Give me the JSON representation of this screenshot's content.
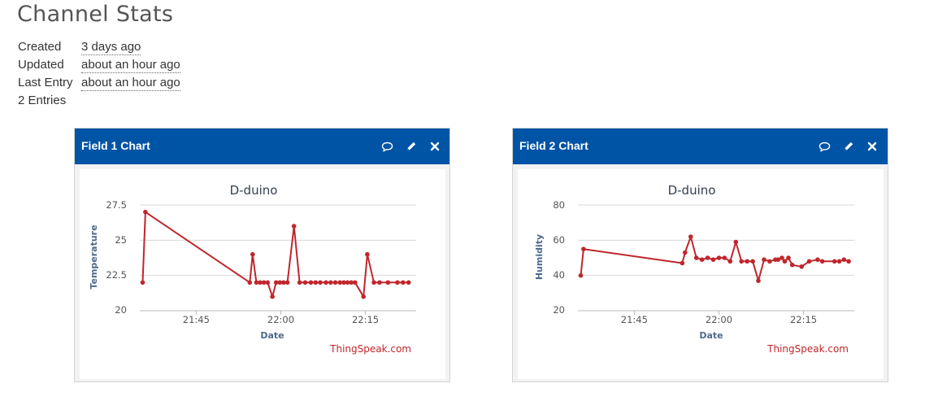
{
  "page": {
    "title": "Channel Stats"
  },
  "stats": [
    {
      "label": "Created",
      "value": "3 days ago"
    },
    {
      "label": "Updated",
      "value": "about an hour ago"
    },
    {
      "label": "Last Entry",
      "value": "about an hour ago"
    },
    {
      "label": "2 Entries",
      "value": ""
    }
  ],
  "colors": {
    "header": "#0054a6",
    "line": "#c0262c",
    "grid": "#d8d8d8"
  },
  "icons": [
    "comment-icon",
    "pencil-icon",
    "close-icon"
  ],
  "widgets": [
    {
      "header": "Field 1 Chart",
      "credit": "ThingSpeak.com",
      "chart": {
        "title": "D-duino",
        "xlabel": "Date",
        "ylabel": "Temperature",
        "yticks": [
          "27.5",
          "25",
          "22.5",
          "20"
        ],
        "xticks": [
          "21:45",
          "22:00",
          "22:15"
        ]
      }
    },
    {
      "header": "Field 2 Chart",
      "credit": "ThingSpeak.com",
      "chart": {
        "title": "D-duino",
        "xlabel": "Date",
        "ylabel": "Humidity",
        "yticks": [
          "80",
          "60",
          "40",
          "20"
        ],
        "xticks": [
          "21:45",
          "22:00",
          "22:15"
        ]
      }
    }
  ],
  "chart_data": [
    {
      "type": "line",
      "title": "D-duino",
      "xlabel": "Date",
      "ylabel": "Temperature",
      "ylim": [
        20,
        27.5
      ],
      "yticks": [
        20,
        22.5,
        25,
        27.5
      ],
      "xlim": [
        "21:35",
        "22:24"
      ],
      "xticks": [
        "21:45",
        "22:00",
        "22:15"
      ],
      "grid": true,
      "series": [
        {
          "x": [
            "21:35:30",
            "21:36:00",
            "21:54:30",
            "21:55:00",
            "21:55:40",
            "21:56:20",
            "21:57:00",
            "21:57:40",
            "21:58:30",
            "21:59:10",
            "21:59:50",
            "22:00:30",
            "22:01:10",
            "22:02:20",
            "22:03:20",
            "22:04:20",
            "22:05:20",
            "22:06:10",
            "22:07:00",
            "22:08:00",
            "22:08:50",
            "22:09:40",
            "22:10:30",
            "22:11:10",
            "22:11:50",
            "22:12:30",
            "22:13:10",
            "22:14:40",
            "22:15:20",
            "22:16:30",
            "22:17:30",
            "22:19:00",
            "22:20:40",
            "22:21:40",
            "22:22:40"
          ],
          "y": [
            22,
            27,
            22,
            24,
            22,
            22,
            22,
            22,
            21,
            22,
            22,
            22,
            22,
            26,
            22,
            22,
            22,
            22,
            22,
            22,
            22,
            22,
            22,
            22,
            22,
            22,
            22,
            21,
            24,
            22,
            22,
            22,
            22,
            22,
            22
          ]
        }
      ]
    },
    {
      "type": "line",
      "title": "D-duino",
      "xlabel": "Date",
      "ylabel": "Humidity",
      "ylim": [
        20,
        80
      ],
      "yticks": [
        20,
        40,
        60,
        80
      ],
      "xlim": [
        "21:35",
        "22:24"
      ],
      "xticks": [
        "21:45",
        "22:00",
        "22:15"
      ],
      "grid": true,
      "series": [
        {
          "x": [
            "21:35:30",
            "21:36:00",
            "21:53:30",
            "21:54:00",
            "21:55:00",
            "21:56:00",
            "21:57:00",
            "21:58:00",
            "21:59:00",
            "22:00:00",
            "22:01:00",
            "22:02:00",
            "22:03:00",
            "22:04:00",
            "22:05:00",
            "22:06:00",
            "22:07:00",
            "22:08:00",
            "22:09:00",
            "22:10:00",
            "22:10:30",
            "22:11:10",
            "22:11:40",
            "22:12:20",
            "22:13:00",
            "22:14:40",
            "22:16:00",
            "22:17:30",
            "22:18:20",
            "22:20:30",
            "22:21:20",
            "22:22:10",
            "22:23:00"
          ],
          "y": [
            40,
            55,
            47,
            53,
            62,
            50,
            49,
            50,
            49,
            50,
            50,
            48,
            59,
            48,
            48,
            48,
            37,
            49,
            48,
            49,
            49,
            50,
            48,
            50,
            46,
            45,
            48,
            49,
            48,
            48,
            48,
            49,
            48
          ]
        }
      ]
    }
  ]
}
